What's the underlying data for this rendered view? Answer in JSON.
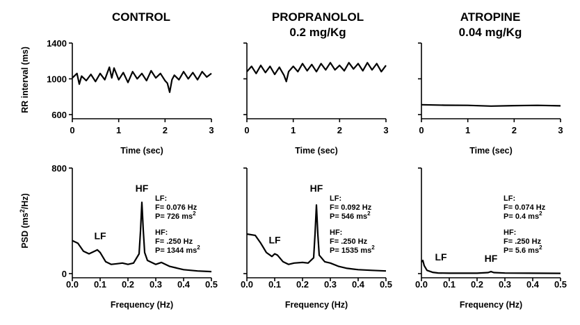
{
  "figure": {
    "titles": [
      "CONTROL",
      "PROPRANOLOL",
      "0.2 mg/Kg",
      "ATROPINE",
      "0.04 mg/Kg"
    ],
    "rr_ylabel": "RR interval (ms)",
    "psd_ylabel": "PSD (ms2/Hz)"
  },
  "chart_data": [
    {
      "type": "line",
      "panel": "CONTROL RR",
      "xlabel": "Time (sec)",
      "ylabel": "RR interval (ms)",
      "xlim": [
        0,
        3
      ],
      "ylim": [
        600,
        1400
      ],
      "xticks": [
        "0",
        "1",
        "2",
        "3"
      ],
      "yticks": [
        "1400",
        "1000",
        "600"
      ],
      "x": [
        0,
        0.1,
        0.15,
        0.2,
        0.3,
        0.4,
        0.5,
        0.6,
        0.7,
        0.8,
        0.85,
        0.9,
        1.0,
        1.1,
        1.2,
        1.3,
        1.4,
        1.5,
        1.6,
        1.7,
        1.8,
        1.9,
        2.0,
        2.05,
        2.1,
        2.15,
        2.2,
        2.3,
        2.4,
        2.5,
        2.6,
        2.7,
        2.8,
        2.9,
        3.0
      ],
      "y": [
        1010,
        1060,
        940,
        1030,
        980,
        1050,
        970,
        1060,
        990,
        1130,
        1010,
        1120,
        990,
        1070,
        960,
        1080,
        1000,
        1060,
        980,
        1090,
        1010,
        1060,
        980,
        950,
        850,
        990,
        1040,
        990,
        1080,
        1000,
        1070,
        990,
        1080,
        1020,
        1060
      ]
    },
    {
      "type": "line",
      "panel": "PROPRANOLOL RR",
      "xlabel": "Time (sec)",
      "ylabel": "RR interval (ms)",
      "xlim": [
        0,
        3
      ],
      "ylim": [
        600,
        1400
      ],
      "xticks": [
        "0",
        "1",
        "2",
        "3"
      ],
      "yticks": [],
      "x": [
        0,
        0.1,
        0.2,
        0.3,
        0.4,
        0.5,
        0.6,
        0.7,
        0.8,
        0.85,
        0.9,
        1.0,
        1.1,
        1.2,
        1.3,
        1.4,
        1.5,
        1.6,
        1.7,
        1.8,
        1.9,
        2.0,
        2.1,
        2.2,
        2.3,
        2.4,
        2.5,
        2.6,
        2.7,
        2.8,
        2.9,
        3.0
      ],
      "y": [
        1080,
        1140,
        1060,
        1150,
        1070,
        1140,
        1050,
        1130,
        1040,
        970,
        1080,
        1140,
        1080,
        1170,
        1090,
        1160,
        1080,
        1170,
        1100,
        1180,
        1100,
        1150,
        1090,
        1180,
        1110,
        1170,
        1090,
        1180,
        1100,
        1170,
        1080,
        1150
      ]
    },
    {
      "type": "line",
      "panel": "ATROPINE RR",
      "xlabel": "Time (sec)",
      "ylabel": "RR interval (ms)",
      "xlim": [
        0,
        3
      ],
      "ylim": [
        600,
        1400
      ],
      "xticks": [
        "0",
        "1",
        "2",
        "3"
      ],
      "yticks": [],
      "x": [
        0,
        0.5,
        1.0,
        1.5,
        2.0,
        2.5,
        3.0
      ],
      "y": [
        710,
        705,
        703,
        695,
        700,
        703,
        698
      ]
    },
    {
      "type": "area",
      "panel": "CONTROL PSD",
      "xlabel": "Frequency (Hz)",
      "ylabel": "PSD (ms2/Hz)",
      "xlim": [
        0,
        0.5
      ],
      "ylim": [
        0,
        800
      ],
      "xticks": [
        "0.0",
        "0.1",
        "0.2",
        "0.3",
        "0.4",
        "0.5"
      ],
      "yticks": [
        "800",
        "0"
      ],
      "x": [
        0,
        0.02,
        0.04,
        0.06,
        0.08,
        0.09,
        0.1,
        0.12,
        0.14,
        0.16,
        0.18,
        0.2,
        0.22,
        0.24,
        0.245,
        0.25,
        0.255,
        0.26,
        0.27,
        0.3,
        0.32,
        0.35,
        0.4,
        0.45,
        0.5
      ],
      "y": [
        250,
        230,
        170,
        150,
        170,
        180,
        160,
        90,
        70,
        75,
        80,
        70,
        80,
        150,
        320,
        540,
        330,
        160,
        100,
        70,
        85,
        55,
        30,
        20,
        15
      ],
      "peaks": [
        {
          "label": "LF",
          "freq": "F= 0.076 Hz",
          "power": "P= 726 ms2"
        },
        {
          "label": "HF",
          "freq": "F= .250 Hz",
          "power": "P= 1344 ms2"
        }
      ]
    },
    {
      "type": "area",
      "panel": "PROPRANOLOL PSD",
      "xlabel": "Frequency (Hz)",
      "ylabel": "PSD (ms2/Hz)",
      "xlim": [
        0,
        0.5
      ],
      "ylim": [
        0,
        800
      ],
      "xticks": [
        "0.0",
        "0.1",
        "0.2",
        "0.3",
        "0.4",
        "0.5"
      ],
      "yticks": [],
      "x": [
        0,
        0.03,
        0.05,
        0.07,
        0.09,
        0.1,
        0.11,
        0.13,
        0.15,
        0.17,
        0.2,
        0.22,
        0.24,
        0.245,
        0.25,
        0.255,
        0.26,
        0.28,
        0.3,
        0.33,
        0.36,
        0.4,
        0.45,
        0.5
      ],
      "y": [
        300,
        290,
        230,
        160,
        130,
        150,
        140,
        90,
        70,
        80,
        85,
        80,
        120,
        300,
        520,
        300,
        140,
        90,
        80,
        55,
        40,
        30,
        25,
        20
      ],
      "peaks": [
        {
          "label": "LF",
          "freq": "F= 0.092 Hz",
          "power": "P= 546 ms2"
        },
        {
          "label": "HF",
          "freq": "F= .250 Hz",
          "power": "P= 1535 ms2"
        }
      ]
    },
    {
      "type": "area",
      "panel": "ATROPINE PSD",
      "xlabel": "Frequency (Hz)",
      "ylabel": "PSD (ms2/Hz)",
      "xlim": [
        0,
        0.5
      ],
      "ylim": [
        0,
        800
      ],
      "xticks": [
        "0.0",
        "0.1",
        "0.2",
        "0.3",
        "0.4",
        "0.5"
      ],
      "yticks": [],
      "x": [
        0,
        0.005,
        0.01,
        0.02,
        0.04,
        0.06,
        0.1,
        0.2,
        0.24,
        0.25,
        0.26,
        0.3,
        0.5
      ],
      "y": [
        90,
        100,
        60,
        25,
        10,
        5,
        3,
        3,
        8,
        15,
        8,
        4,
        2
      ],
      "peaks": [
        {
          "label": "LF",
          "freq": "F= 0.074 Hz",
          "power": "P= 0.4 ms2"
        },
        {
          "label": "HF",
          "freq": "F= .250 Hz",
          "power": "P= 5.6 ms2"
        }
      ]
    }
  ]
}
